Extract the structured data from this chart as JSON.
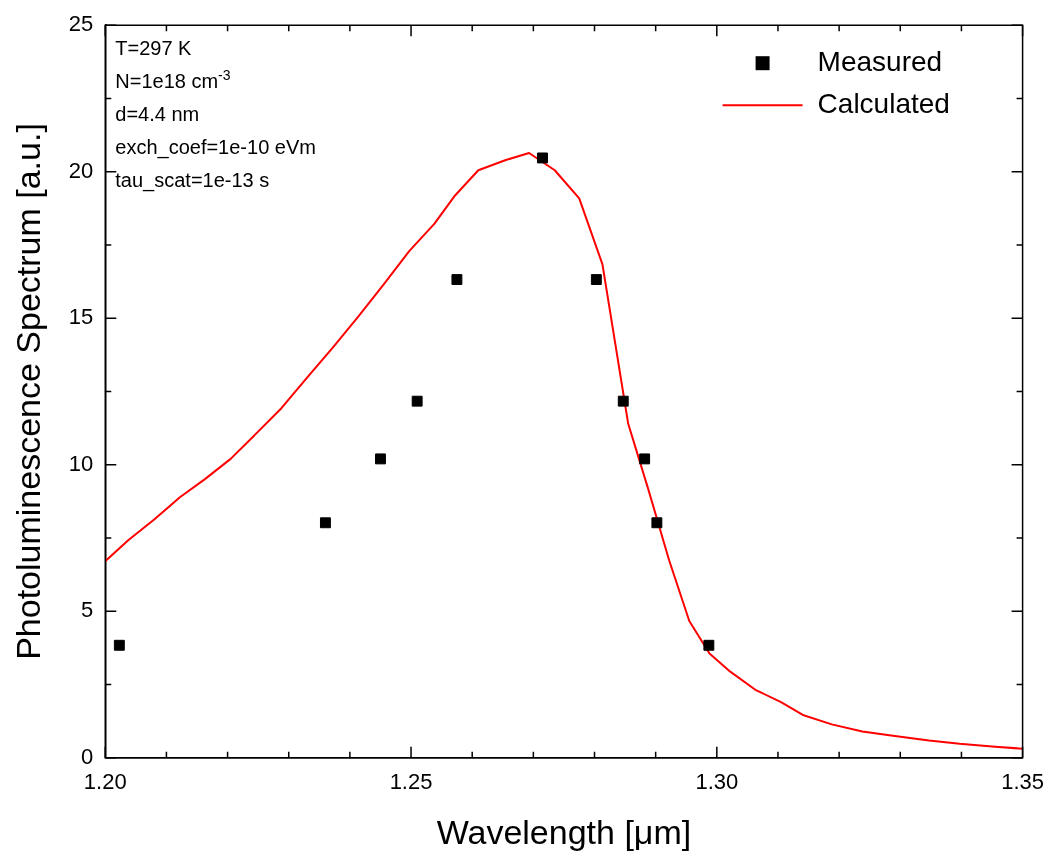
{
  "chart_data": {
    "type": "scatter",
    "xlabel": "Wavelength [μm]",
    "ylabel": "Photoluminescence Spectrum [a.u.]",
    "annotations": [
      "T=297 K",
      "N=1e18 cm$^{-3}$",
      "d=4.4 nm",
      "exch_coef=1e-10 eVm",
      "tau_scat=1e-13 s"
    ],
    "xlim": [
      1.2,
      1.35
    ],
    "xticks": [
      {
        "value": 1.2,
        "label": "1.20"
      },
      {
        "value": 1.21,
        "label": null
      },
      {
        "value": 1.22,
        "label": null
      },
      {
        "value": 1.23,
        "label": null
      },
      {
        "value": 1.24,
        "label": null
      },
      {
        "value": 1.25,
        "label": "1.25"
      },
      {
        "value": 1.26,
        "label": null
      },
      {
        "value": 1.27,
        "label": null
      },
      {
        "value": 1.28,
        "label": null
      },
      {
        "value": 1.29,
        "label": null
      },
      {
        "value": 1.3,
        "label": "1.30"
      },
      {
        "value": 1.31,
        "label": null
      },
      {
        "value": 1.32,
        "label": null
      },
      {
        "value": 1.33,
        "label": null
      },
      {
        "value": 1.34,
        "label": null
      },
      {
        "value": 1.35,
        "label": "1.35"
      }
    ],
    "ylim": [
      0,
      25
    ],
    "yticks": [
      0,
      {
        "value": 2.5,
        "label": null
      },
      5,
      {
        "value": 7.5,
        "label": null
      },
      10,
      {
        "value": 12.5,
        "label": null
      },
      15,
      {
        "value": 17.5,
        "label": null
      },
      20,
      {
        "value": 22.5,
        "label": null
      },
      25
    ],
    "grid": false,
    "legend": "top right",
    "series": [
      {
        "name": "Measured",
        "type": "scatter",
        "marker": "square",
        "color": "#000000",
        "x": [
          1.2023,
          1.236,
          1.245,
          1.251,
          1.2575,
          1.2715,
          1.2803,
          1.2847,
          1.2882,
          1.2902,
          1.2987
        ],
        "values": [
          3.84,
          8.02,
          10.2,
          12.17,
          16.32,
          20.47,
          16.32,
          12.17,
          10.2,
          8.02,
          3.84
        ]
      },
      {
        "name": "Calculated",
        "type": "line",
        "marker": "none",
        "line_style": "solid",
        "color": "#ff0000",
        "x": [
          1.2,
          1.2038,
          1.208,
          1.2122,
          1.2163,
          1.2205,
          1.2247,
          1.2288,
          1.233,
          1.2372,
          1.2413,
          1.2455,
          1.2497,
          1.2538,
          1.2572,
          1.261,
          1.2655,
          1.2693,
          1.2735,
          1.2775,
          1.2813,
          1.2835,
          1.2855,
          1.2888,
          1.2922,
          1.2955,
          1.2988,
          1.3022,
          1.3063,
          1.3105,
          1.3142,
          1.3188,
          1.3238,
          1.3288,
          1.3347,
          1.3397,
          1.3455,
          1.35
        ],
        "values": [
          6.71,
          7.43,
          8.13,
          8.89,
          9.51,
          10.2,
          11.07,
          11.93,
          12.97,
          14.0,
          15.04,
          16.15,
          17.29,
          18.22,
          19.19,
          20.05,
          20.4,
          20.64,
          20.05,
          19.09,
          16.84,
          14.0,
          11.41,
          9.16,
          6.74,
          4.67,
          3.56,
          2.94,
          2.32,
          1.9,
          1.45,
          1.14,
          0.9,
          0.75,
          0.59,
          0.48,
          0.38,
          0.31
        ]
      }
    ]
  }
}
